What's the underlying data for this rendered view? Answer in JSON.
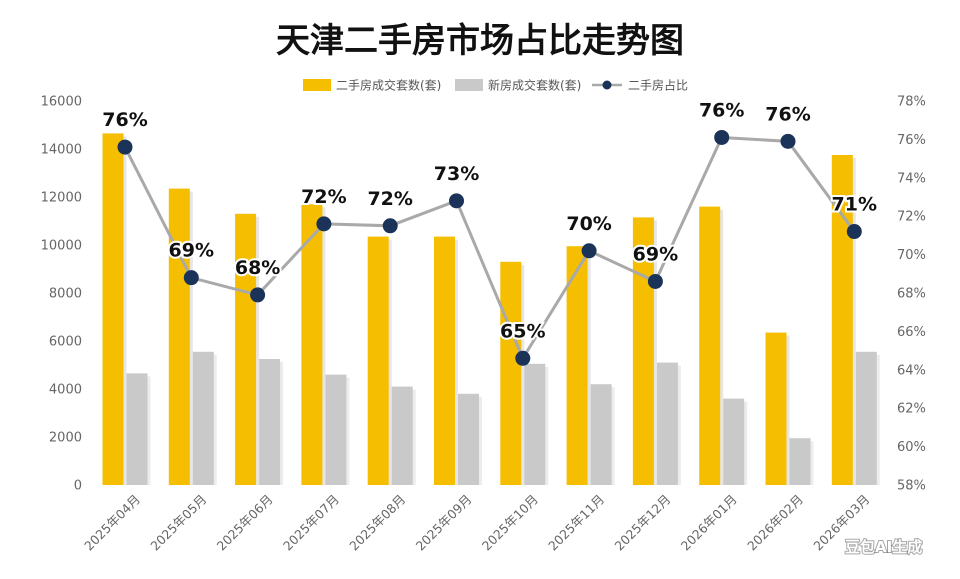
{
  "chart_data": {
    "type": "bar",
    "title": "天津二手房市场占比走势图",
    "categories": [
      "2025年04月",
      "2025年05月",
      "2025年06月",
      "2025年07月",
      "2025年08月",
      "2025年09月",
      "2025年10月",
      "2025年11月",
      "2025年12月",
      "2026年01月",
      "2026年02月",
      "2026年03月"
    ],
    "series": [
      {
        "name": "二手房成交套数(套)",
        "type": "bar",
        "axis": "left",
        "color": "#F5BE00",
        "values": [
          14650,
          12350,
          11300,
          11700,
          10350,
          10350,
          9300,
          9950,
          11150,
          11600,
          6350,
          13750
        ]
      },
      {
        "name": "新房成交套数(套)",
        "type": "bar",
        "axis": "left",
        "color": "#C9C9C9",
        "values": [
          4650,
          5550,
          5250,
          4600,
          4100,
          3800,
          5050,
          4200,
          5100,
          3600,
          1950,
          5550
        ]
      },
      {
        "name": "二手房占比",
        "type": "line",
        "axis": "right",
        "color": "#A9A9A9",
        "marker_color": "#1B3358",
        "values": [
          75.6,
          68.8,
          67.9,
          71.6,
          71.5,
          72.8,
          64.6,
          70.2,
          68.6,
          76.1,
          75.9,
          71.2
        ],
        "labels": [
          "76%",
          "69%",
          "68%",
          "72%",
          "72%",
          "73%",
          "65%",
          "70%",
          "69%",
          "76%",
          "76%",
          "71%"
        ]
      }
    ],
    "y_left": {
      "min": 0,
      "max": 16000,
      "ticks": [
        "0",
        "2000",
        "4000",
        "6000",
        "8000",
        "10000",
        "12000",
        "14000",
        "16000"
      ]
    },
    "y_right": {
      "min": 58,
      "max": 78,
      "ticks": [
        "58%",
        "60%",
        "62%",
        "64%",
        "66%",
        "68%",
        "70%",
        "72%",
        "74%",
        "76%",
        "78%"
      ]
    },
    "legend_position": "top",
    "grid": false
  },
  "watermark": {
    "text": "豆包AI生成"
  }
}
